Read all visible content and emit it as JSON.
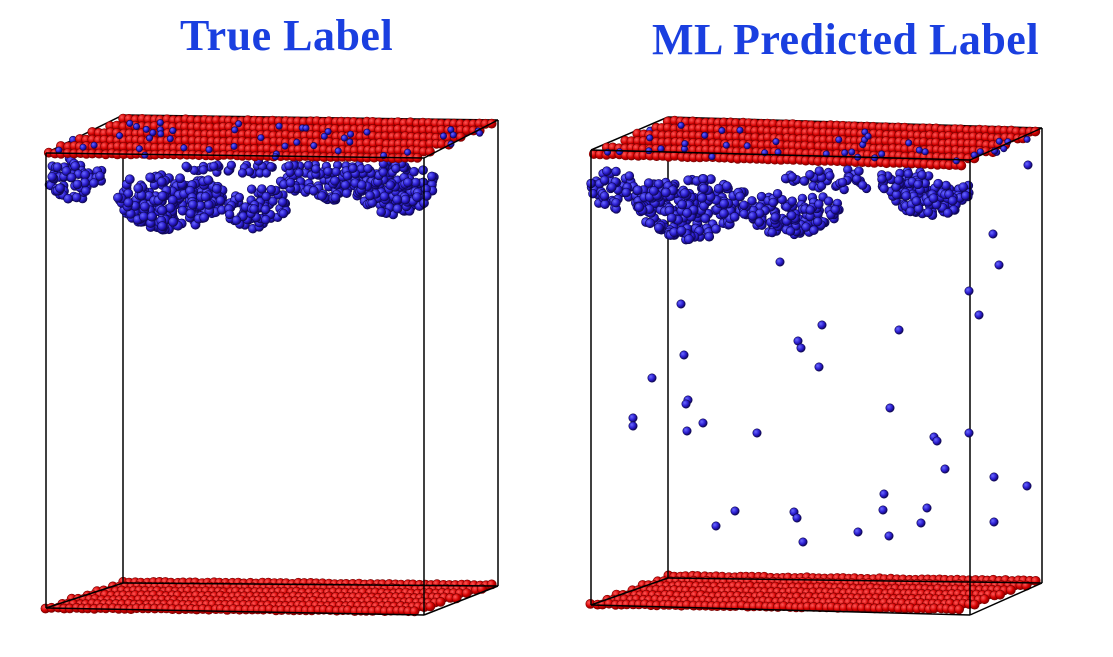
{
  "panels": [
    {
      "title": "True Label",
      "variant": "true"
    },
    {
      "title": "ML Predicted Label",
      "variant": "predicted"
    }
  ],
  "colors": {
    "title": "#1a3fe0",
    "layer_atom": "#d40000",
    "layer_atom_dark": "#a00000",
    "particle_atom": "#2a1ccf",
    "particle_atom_dark": "#16107a",
    "box_edge": "#000000"
  }
}
